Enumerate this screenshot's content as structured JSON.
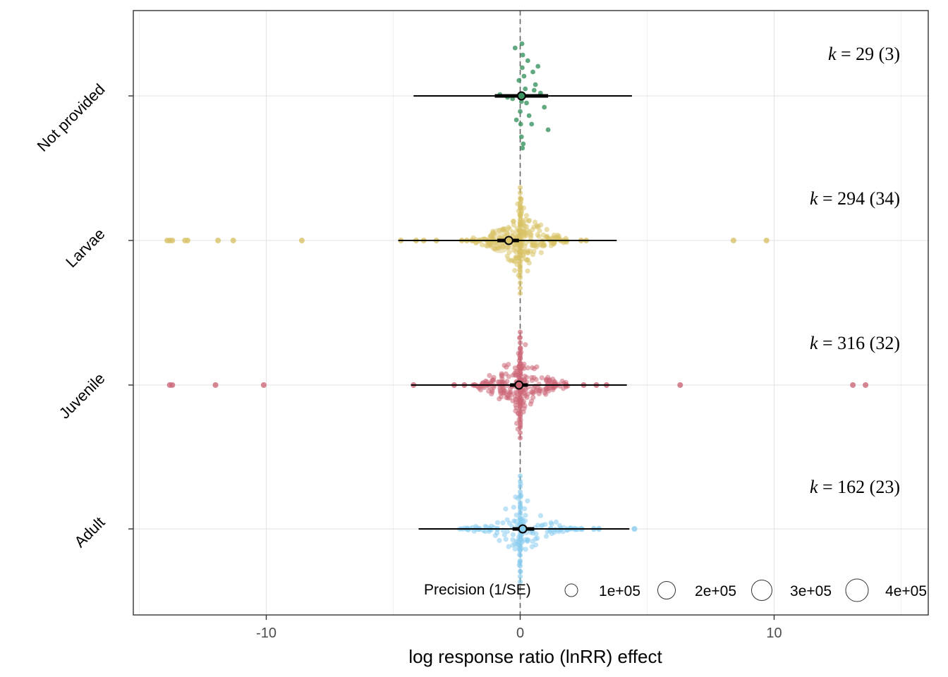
{
  "chart_data": {
    "type": "scatter",
    "subtype": "orchard plot",
    "xlabel": "log response ratio (lnRR) effect",
    "ylabel": "",
    "xlim": [
      -15.5,
      15.5
    ],
    "xticks": [
      -10,
      0,
      10
    ],
    "xtick_labels": [
      "-10",
      "0",
      "10"
    ],
    "grid": true,
    "reference_line": 0,
    "categories": [
      "Not provided",
      "Larvae",
      "Juvenile",
      "Adult"
    ],
    "series": [
      {
        "name": "Not provided",
        "color": "#3a9460",
        "k_label": "k = 29 (3)",
        "k_letter": "k",
        "k_rest": " = 29 (3)",
        "estimate": 0.05,
        "ci": [
          -1.0,
          1.1
        ],
        "pi": [
          -4.2,
          4.4
        ],
        "points": [
          -0.2,
          0.1,
          0.3,
          0.7,
          0.5,
          0.15,
          -0.05,
          0.6,
          0.2,
          0.8,
          -0.3,
          0.25,
          0.95,
          0.0,
          0.35,
          -0.15,
          0.45,
          1.1,
          0.05,
          0.12,
          -0.8,
          -0.5,
          0.55,
          0.05,
          0.1,
          0.08,
          0.02,
          0.07,
          0.09
        ]
      },
      {
        "name": "Larvae",
        "color": "#d9c266",
        "k_label": "k = 294 (34)",
        "k_letter": "k",
        "k_rest": " = 294 (34)",
        "estimate": -0.45,
        "ci": [
          -0.9,
          -0.05
        ],
        "pi": [
          -4.8,
          3.8
        ],
        "points": [
          -13.9,
          -13.8,
          -13.7,
          -13.2,
          -13.1,
          -11.9,
          -11.3,
          -8.6,
          -4.7,
          -4.1,
          -3.8,
          -3.3,
          -2.3,
          -2.1,
          -1.9,
          -1.6,
          -1.3,
          -1.1,
          1.6,
          2.4,
          2.6,
          8.4,
          9.7
        ]
      },
      {
        "name": "Juvenile",
        "color": "#cc6677",
        "k_label": "k = 316 (32)",
        "k_letter": "k",
        "k_rest": " = 316 (32)",
        "estimate": -0.05,
        "ci": [
          -0.4,
          0.3
        ],
        "pi": [
          -4.3,
          4.2
        ],
        "points": [
          -13.8,
          -13.7,
          -12.0,
          -10.1,
          -4.2,
          -2.6,
          -2.2,
          -1.8,
          1.4,
          1.8,
          2.5,
          3.0,
          3.4,
          6.3,
          13.1,
          13.6
        ]
      },
      {
        "name": "Adult",
        "color": "#88ccee",
        "k_label": "k = 162 (23)",
        "k_letter": "k",
        "k_rest": " = 162 (23)",
        "estimate": 0.1,
        "ci": [
          -0.3,
          0.55
        ],
        "pi": [
          -4.0,
          4.3
        ],
        "points": [
          -1.6,
          -1.2,
          -0.9,
          1.2,
          1.6,
          2.4,
          2.9,
          3.1,
          4.5
        ]
      }
    ],
    "legend": {
      "title": "Precision (1/SE)",
      "position": "bottom-right",
      "items": [
        "1e+05",
        "2e+05",
        "3e+05",
        "4e+05"
      ]
    }
  }
}
